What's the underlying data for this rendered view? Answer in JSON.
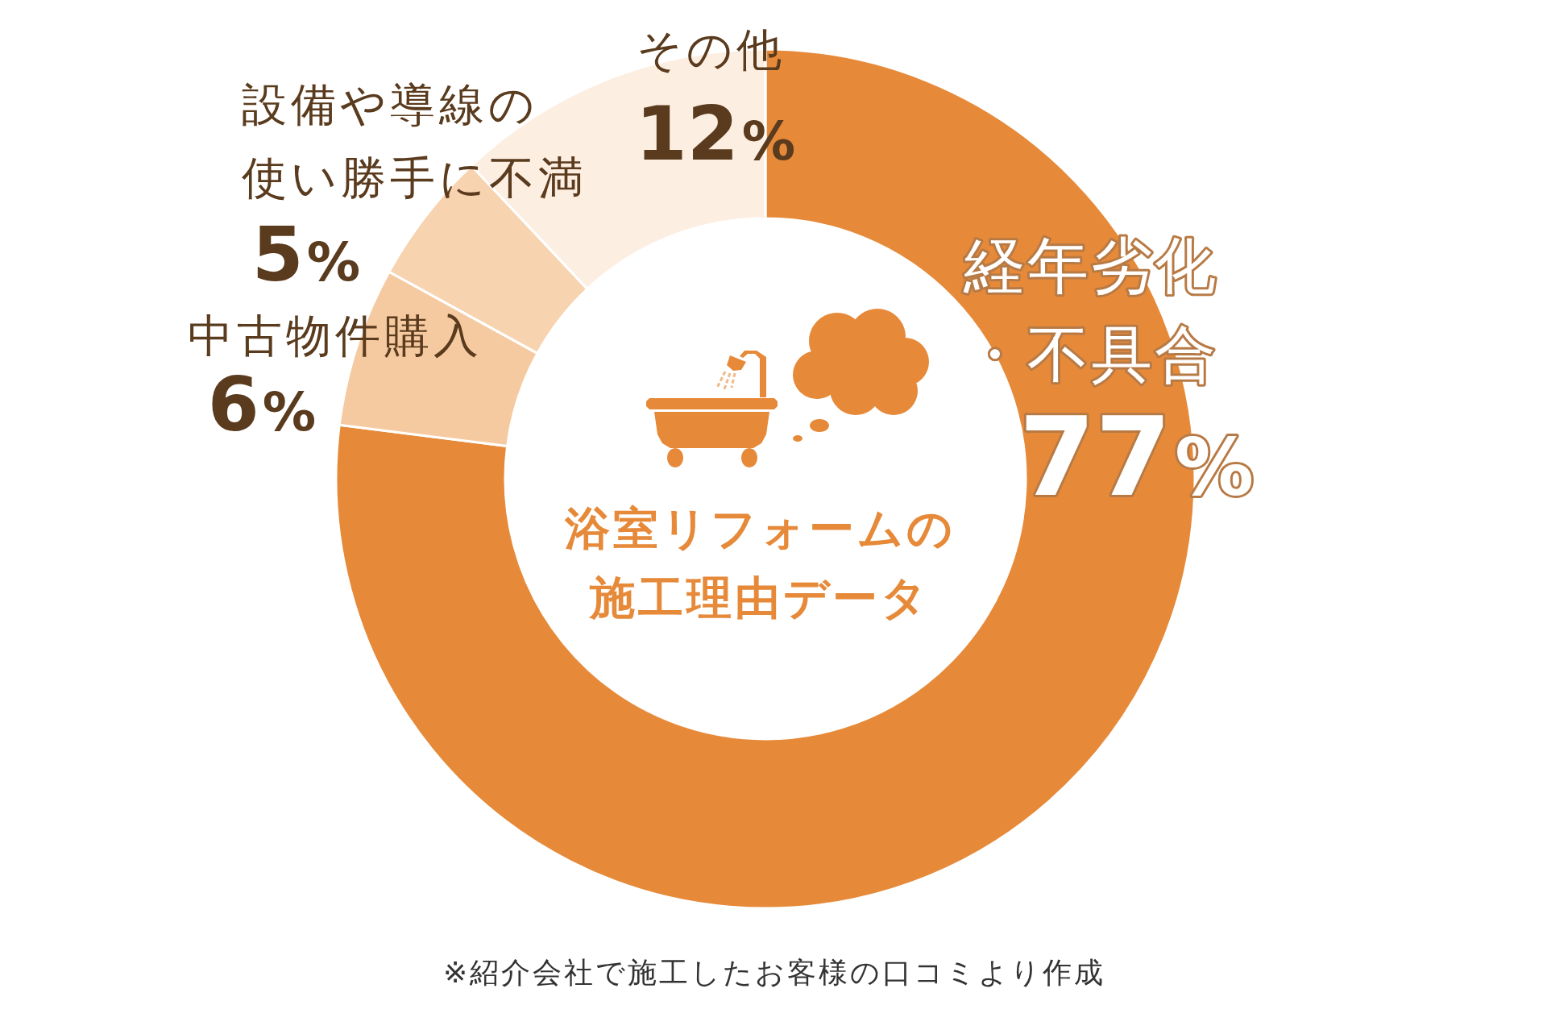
{
  "chart_data": {
    "type": "donut",
    "title": "浴室リフォームの施工理由データ",
    "categories": [
      "経年劣化・不具合",
      "中古物件購入",
      "設備や導線の使い勝手に不満",
      "その他"
    ],
    "values": [
      77,
      6,
      5,
      12
    ],
    "colors": [
      "#e68a3a",
      "#f5caa0",
      "#f7d3b0",
      "#fdeee2"
    ],
    "value_labels": [
      "77%",
      "6%",
      "5%",
      "12%"
    ],
    "annotations": [
      "※紹介会社で施工したお客様の口コミより作成"
    ]
  }
}
